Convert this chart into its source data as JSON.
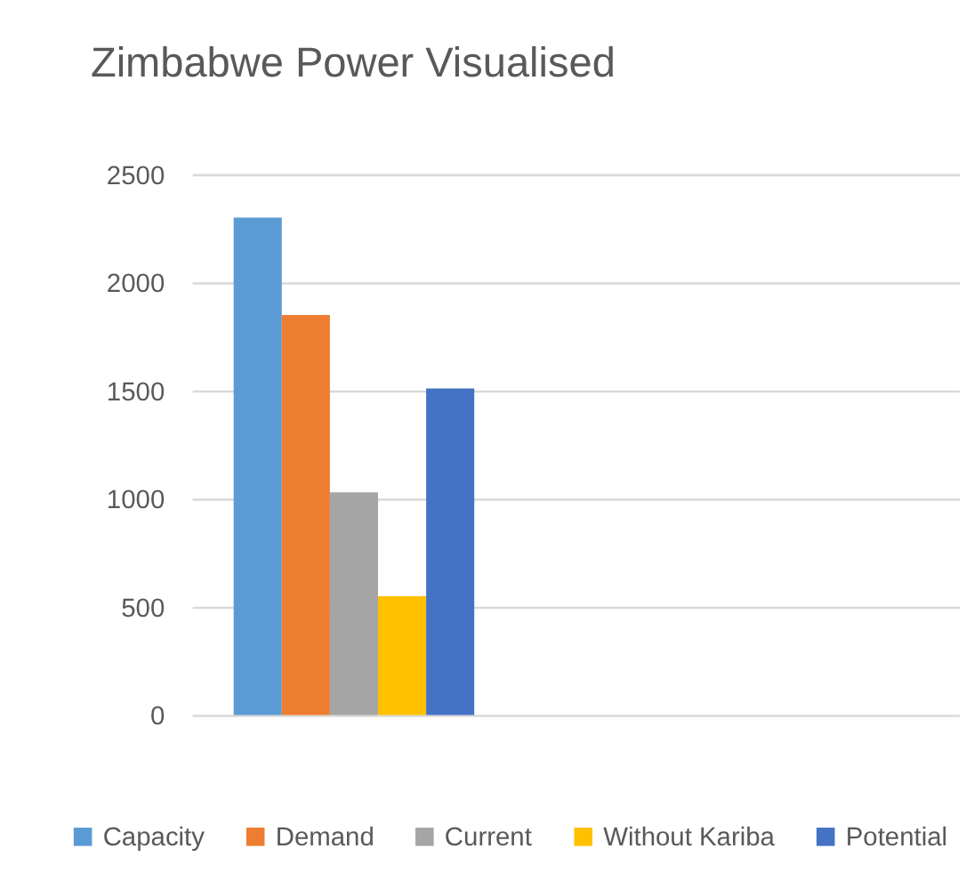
{
  "chart_data": {
    "type": "bar",
    "title": "Zimbabwe Power Visualised",
    "categories": [
      null
    ],
    "series": [
      {
        "name": "Capacity",
        "color": "#5b9bd5",
        "values": [
          2300
        ]
      },
      {
        "name": "Demand",
        "color": "#ed7d31",
        "values": [
          1850
        ]
      },
      {
        "name": "Current",
        "color": "#a5a5a5",
        "values": [
          1030
        ]
      },
      {
        "name": "Without Kariba",
        "color": "#ffc000",
        "values": [
          550
        ]
      },
      {
        "name": "Potential",
        "color": "#4472c4",
        "values": [
          1510
        ]
      }
    ],
    "ylim": [
      0,
      2500
    ],
    "yticks": [
      0,
      500,
      {
        "value": 1000,
        "label": "1000"
      },
      {
        "value": 1500,
        "label": "1500"
      },
      {
        "value": 2000,
        "label": "2000"
      },
      {
        "value": 2500,
        "label": "2500"
      }
    ],
    "grid": "y",
    "legend": "bottom"
  }
}
